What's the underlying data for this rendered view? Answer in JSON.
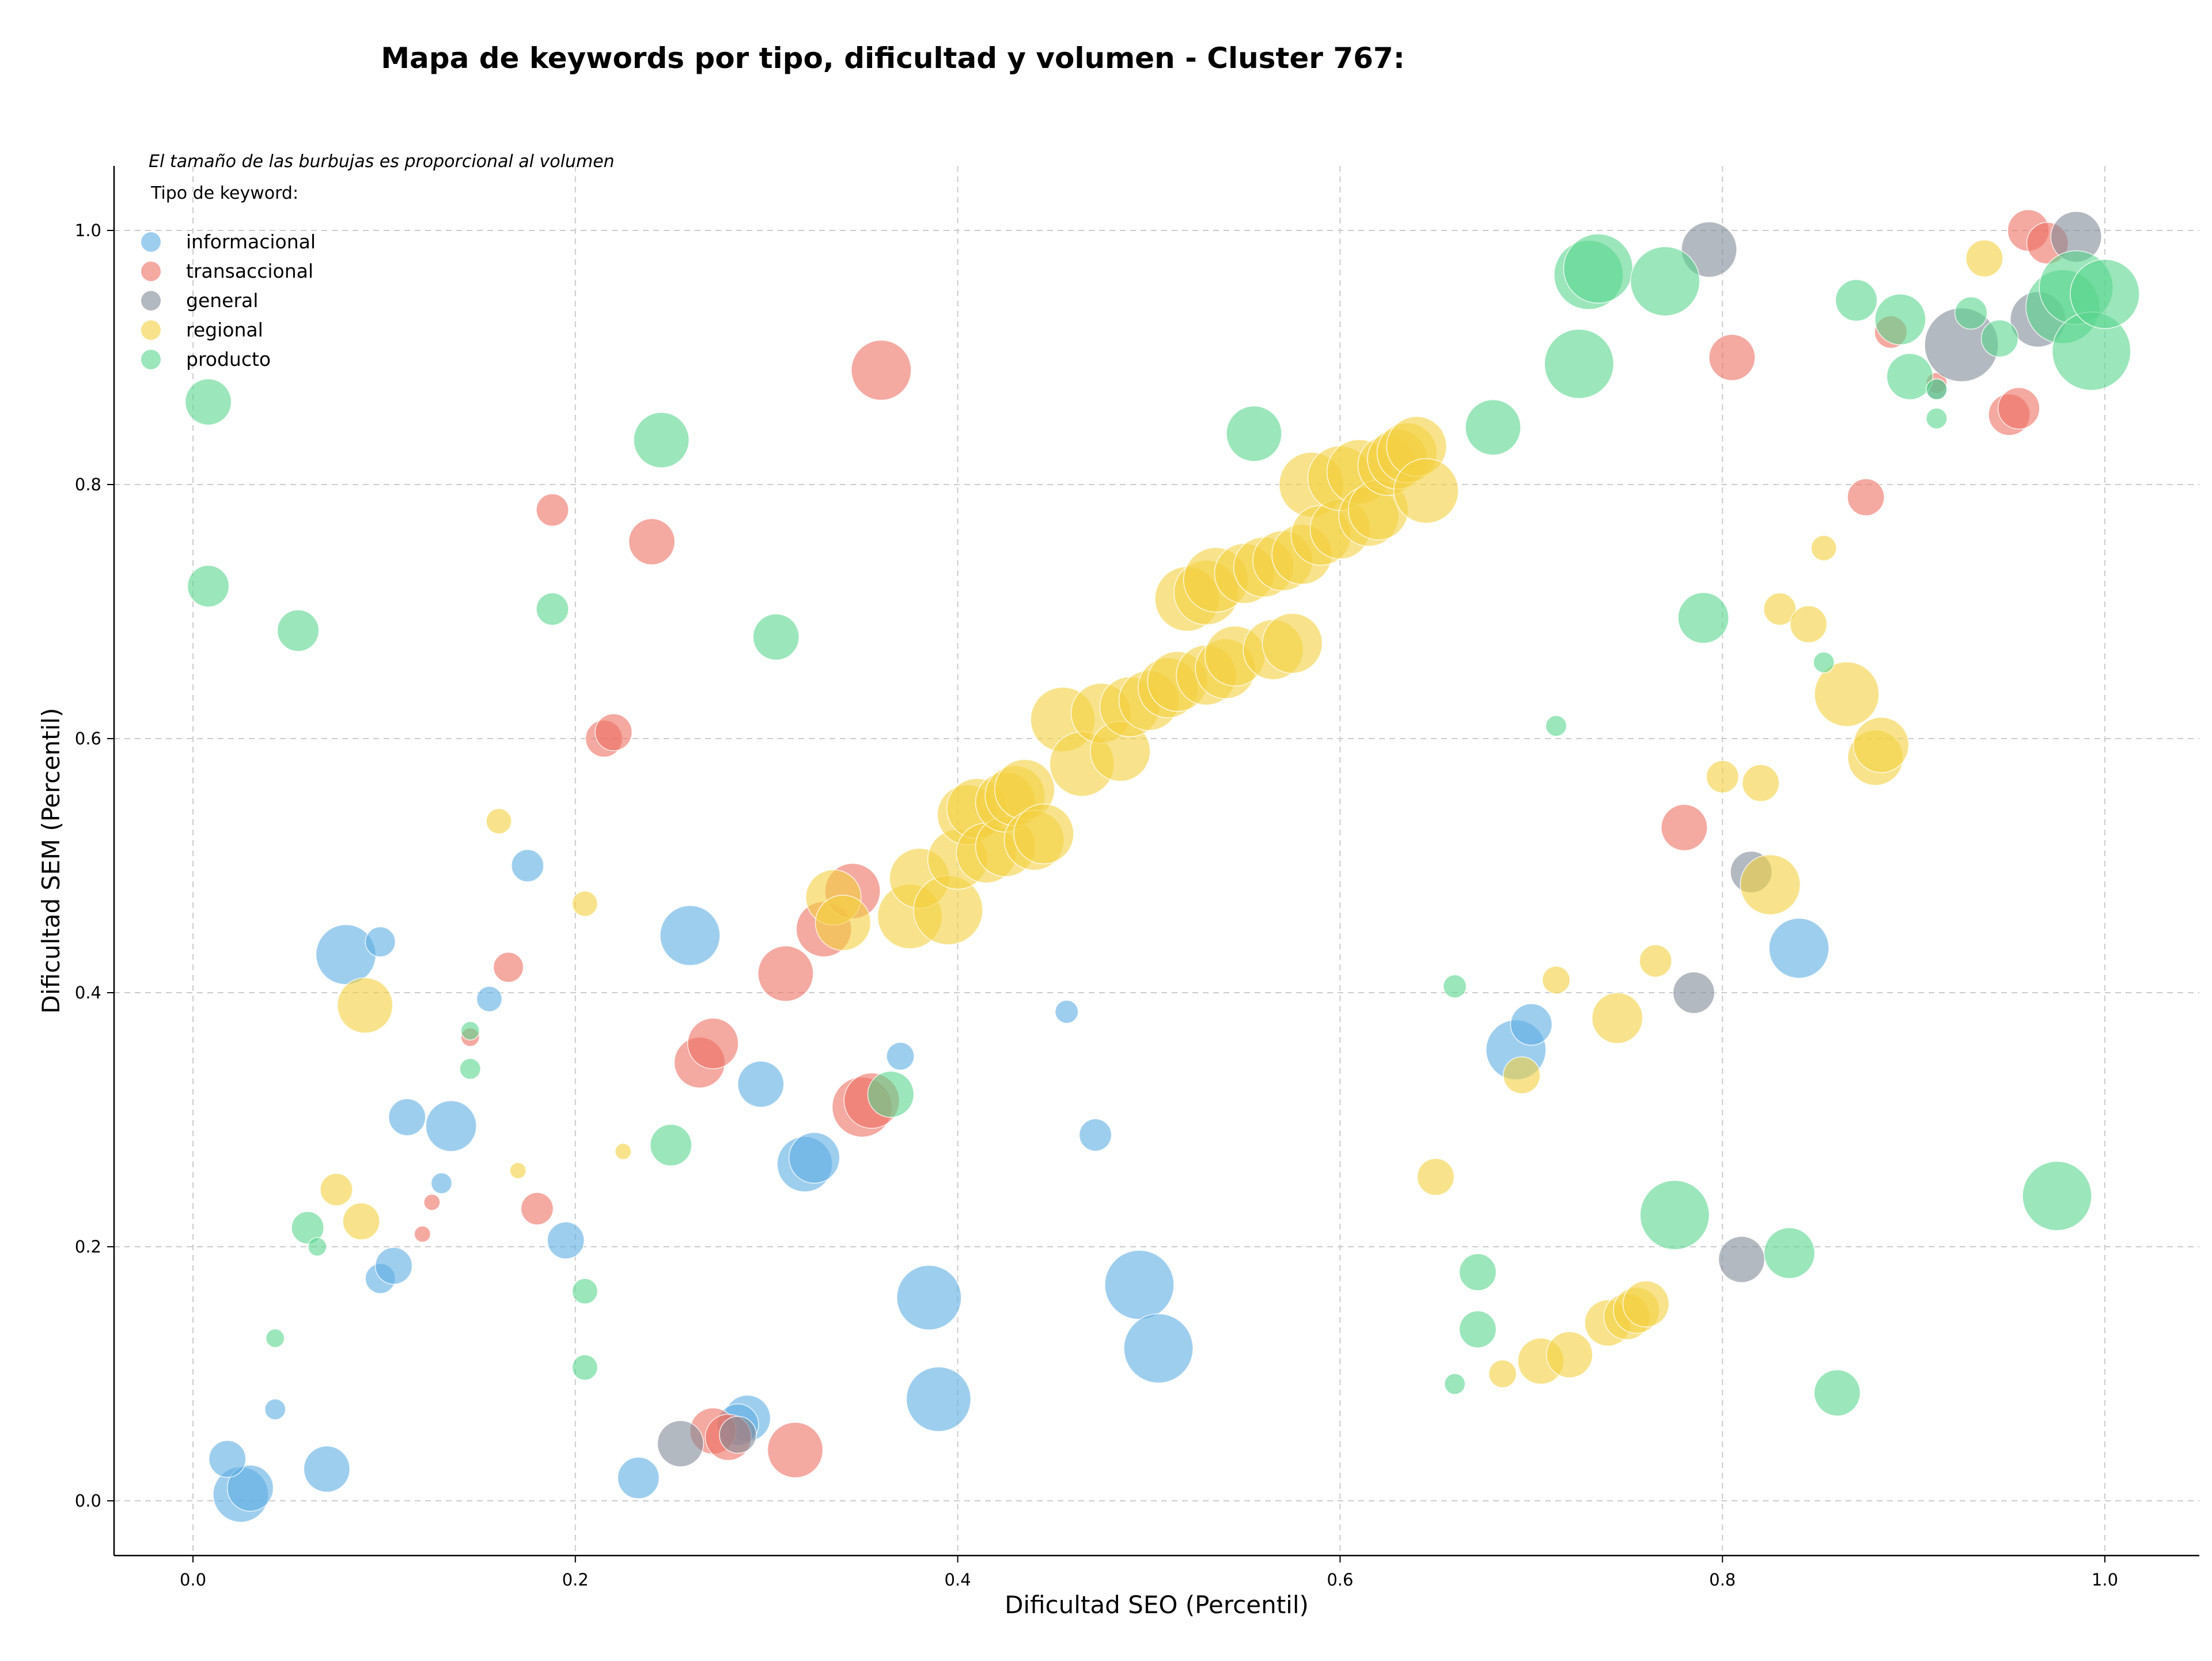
{
  "chart_data": {
    "type": "scatter",
    "title": "Mapa de keywords por tipo, dificultad y volumen - Cluster 767:",
    "xlabel": "Dificultad SEO (Percentil)",
    "ylabel": "Dificultad SEM (Percentil)",
    "xlim": [
      -0.04,
      1.05
    ],
    "ylim": [
      -0.045,
      1.05
    ],
    "xticks": [
      "0.0",
      "0.2",
      "0.4",
      "0.6",
      "0.8",
      "1.0"
    ],
    "yticks": [
      "0.0",
      "0.2",
      "0.4",
      "0.6",
      "0.8",
      "1.0"
    ],
    "grid": true,
    "legend_position": "top-left",
    "legend_note": "El tamaño de las burbujas es proporcional al volumen",
    "legend_title": "Tipo de keyword:",
    "series": [
      {
        "name": "informacional",
        "color": "#5DADE2",
        "points": [
          {
            "x": 0.025,
            "y": 0.005,
            "s": 2.4
          },
          {
            "x": 0.03,
            "y": 0.01,
            "s": 2.0
          },
          {
            "x": 0.018,
            "y": 0.033,
            "s": 1.6
          },
          {
            "x": 0.07,
            "y": 0.025,
            "s": 2.0
          },
          {
            "x": 0.043,
            "y": 0.072,
            "s": 0.9
          },
          {
            "x": 0.098,
            "y": 0.175,
            "s": 1.3
          },
          {
            "x": 0.105,
            "y": 0.185,
            "s": 1.6
          },
          {
            "x": 0.195,
            "y": 0.205,
            "s": 1.6
          },
          {
            "x": 0.13,
            "y": 0.25,
            "s": 0.9
          },
          {
            "x": 0.112,
            "y": 0.302,
            "s": 1.6
          },
          {
            "x": 0.135,
            "y": 0.295,
            "s": 2.2
          },
          {
            "x": 0.155,
            "y": 0.395,
            "s": 1.1
          },
          {
            "x": 0.08,
            "y": 0.43,
            "s": 2.6
          },
          {
            "x": 0.098,
            "y": 0.44,
            "s": 1.3
          },
          {
            "x": 0.175,
            "y": 0.5,
            "s": 1.4
          },
          {
            "x": 0.26,
            "y": 0.445,
            "s": 2.6
          },
          {
            "x": 0.297,
            "y": 0.328,
            "s": 2.0
          },
          {
            "x": 0.32,
            "y": 0.265,
            "s": 2.4
          },
          {
            "x": 0.325,
            "y": 0.27,
            "s": 2.2
          },
          {
            "x": 0.37,
            "y": 0.35,
            "s": 1.2
          },
          {
            "x": 0.233,
            "y": 0.018,
            "s": 1.8
          },
          {
            "x": 0.29,
            "y": 0.065,
            "s": 2.0
          },
          {
            "x": 0.285,
            "y": 0.06,
            "s": 1.8
          },
          {
            "x": 0.385,
            "y": 0.16,
            "s": 2.8
          },
          {
            "x": 0.39,
            "y": 0.08,
            "s": 2.8
          },
          {
            "x": 0.457,
            "y": 0.385,
            "s": 1.0
          },
          {
            "x": 0.472,
            "y": 0.288,
            "s": 1.4
          },
          {
            "x": 0.495,
            "y": 0.17,
            "s": 3.0
          },
          {
            "x": 0.505,
            "y": 0.12,
            "s": 3.0
          },
          {
            "x": 0.692,
            "y": 0.355,
            "s": 2.6
          },
          {
            "x": 0.7,
            "y": 0.375,
            "s": 1.8
          },
          {
            "x": 0.84,
            "y": 0.435,
            "s": 2.6
          }
        ]
      },
      {
        "name": "transaccional",
        "color": "#EC7063",
        "points": [
          {
            "x": 0.12,
            "y": 0.21,
            "s": 0.7
          },
          {
            "x": 0.125,
            "y": 0.235,
            "s": 0.7
          },
          {
            "x": 0.18,
            "y": 0.23,
            "s": 1.4
          },
          {
            "x": 0.145,
            "y": 0.365,
            "s": 0.8
          },
          {
            "x": 0.165,
            "y": 0.42,
            "s": 1.3
          },
          {
            "x": 0.188,
            "y": 0.78,
            "s": 1.4
          },
          {
            "x": 0.215,
            "y": 0.6,
            "s": 1.6
          },
          {
            "x": 0.22,
            "y": 0.605,
            "s": 1.6
          },
          {
            "x": 0.24,
            "y": 0.755,
            "s": 2.0
          },
          {
            "x": 0.265,
            "y": 0.345,
            "s": 2.2
          },
          {
            "x": 0.272,
            "y": 0.36,
            "s": 2.2
          },
          {
            "x": 0.31,
            "y": 0.415,
            "s": 2.4
          },
          {
            "x": 0.33,
            "y": 0.45,
            "s": 2.4
          },
          {
            "x": 0.345,
            "y": 0.48,
            "s": 2.4
          },
          {
            "x": 0.35,
            "y": 0.31,
            "s": 2.6
          },
          {
            "x": 0.355,
            "y": 0.315,
            "s": 2.4
          },
          {
            "x": 0.36,
            "y": 0.89,
            "s": 2.6
          },
          {
            "x": 0.272,
            "y": 0.055,
            "s": 2.0
          },
          {
            "x": 0.28,
            "y": 0.05,
            "s": 2.0
          },
          {
            "x": 0.315,
            "y": 0.04,
            "s": 2.4
          },
          {
            "x": 0.78,
            "y": 0.53,
            "s": 2.0
          },
          {
            "x": 0.805,
            "y": 0.9,
            "s": 2.0
          },
          {
            "x": 0.875,
            "y": 0.79,
            "s": 1.6
          },
          {
            "x": 0.888,
            "y": 0.92,
            "s": 1.4
          },
          {
            "x": 0.95,
            "y": 0.855,
            "s": 1.8
          },
          {
            "x": 0.955,
            "y": 0.86,
            "s": 1.8
          },
          {
            "x": 0.96,
            "y": 1.0,
            "s": 1.8
          },
          {
            "x": 0.97,
            "y": 0.99,
            "s": 1.8
          },
          {
            "x": 0.912,
            "y": 0.88,
            "s": 0.9
          }
        ]
      },
      {
        "name": "general",
        "color": "#808B96",
        "points": [
          {
            "x": 0.255,
            "y": 0.045,
            "s": 2.0
          },
          {
            "x": 0.285,
            "y": 0.052,
            "s": 1.6
          },
          {
            "x": 0.785,
            "y": 0.4,
            "s": 1.8
          },
          {
            "x": 0.793,
            "y": 0.985,
            "s": 2.4
          },
          {
            "x": 0.81,
            "y": 0.19,
            "s": 2.0
          },
          {
            "x": 0.815,
            "y": 0.495,
            "s": 1.8
          },
          {
            "x": 0.912,
            "y": 0.875,
            "s": 0.9
          },
          {
            "x": 0.925,
            "y": 0.91,
            "s": 3.2
          },
          {
            "x": 0.965,
            "y": 0.93,
            "s": 2.4
          },
          {
            "x": 0.985,
            "y": 0.995,
            "s": 2.2
          }
        ]
      },
      {
        "name": "regional",
        "color": "#F4D03F",
        "points": [
          {
            "x": 0.075,
            "y": 0.245,
            "s": 1.4
          },
          {
            "x": 0.088,
            "y": 0.22,
            "s": 1.6
          },
          {
            "x": 0.09,
            "y": 0.39,
            "s": 2.4
          },
          {
            "x": 0.16,
            "y": 0.535,
            "s": 1.1
          },
          {
            "x": 0.17,
            "y": 0.26,
            "s": 0.7
          },
          {
            "x": 0.205,
            "y": 0.47,
            "s": 1.1
          },
          {
            "x": 0.225,
            "y": 0.275,
            "s": 0.7
          },
          {
            "x": 0.335,
            "y": 0.475,
            "s": 2.4
          },
          {
            "x": 0.34,
            "y": 0.455,
            "s": 2.4
          },
          {
            "x": 0.375,
            "y": 0.46,
            "s": 2.8
          },
          {
            "x": 0.38,
            "y": 0.49,
            "s": 2.6
          },
          {
            "x": 0.395,
            "y": 0.465,
            "s": 3.0
          },
          {
            "x": 0.4,
            "y": 0.505,
            "s": 2.6
          },
          {
            "x": 0.405,
            "y": 0.54,
            "s": 2.6
          },
          {
            "x": 0.41,
            "y": 0.545,
            "s": 2.6
          },
          {
            "x": 0.415,
            "y": 0.51,
            "s": 2.6
          },
          {
            "x": 0.425,
            "y": 0.515,
            "s": 2.6
          },
          {
            "x": 0.425,
            "y": 0.55,
            "s": 2.6
          },
          {
            "x": 0.43,
            "y": 0.555,
            "s": 2.6
          },
          {
            "x": 0.435,
            "y": 0.56,
            "s": 2.6
          },
          {
            "x": 0.44,
            "y": 0.52,
            "s": 2.6
          },
          {
            "x": 0.445,
            "y": 0.525,
            "s": 2.6
          },
          {
            "x": 0.455,
            "y": 0.615,
            "s": 2.8
          },
          {
            "x": 0.465,
            "y": 0.58,
            "s": 2.8
          },
          {
            "x": 0.475,
            "y": 0.62,
            "s": 2.6
          },
          {
            "x": 0.485,
            "y": 0.59,
            "s": 2.6
          },
          {
            "x": 0.49,
            "y": 0.625,
            "s": 2.6
          },
          {
            "x": 0.5,
            "y": 0.63,
            "s": 2.6
          },
          {
            "x": 0.51,
            "y": 0.64,
            "s": 2.6
          },
          {
            "x": 0.515,
            "y": 0.645,
            "s": 2.6
          },
          {
            "x": 0.52,
            "y": 0.71,
            "s": 2.8
          },
          {
            "x": 0.53,
            "y": 0.715,
            "s": 2.8
          },
          {
            "x": 0.53,
            "y": 0.65,
            "s": 2.6
          },
          {
            "x": 0.535,
            "y": 0.725,
            "s": 2.8
          },
          {
            "x": 0.54,
            "y": 0.655,
            "s": 2.6
          },
          {
            "x": 0.545,
            "y": 0.665,
            "s": 2.6
          },
          {
            "x": 0.55,
            "y": 0.73,
            "s": 2.6
          },
          {
            "x": 0.56,
            "y": 0.735,
            "s": 2.6
          },
          {
            "x": 0.565,
            "y": 0.67,
            "s": 2.6
          },
          {
            "x": 0.57,
            "y": 0.74,
            "s": 2.6
          },
          {
            "x": 0.575,
            "y": 0.675,
            "s": 2.6
          },
          {
            "x": 0.58,
            "y": 0.745,
            "s": 2.6
          },
          {
            "x": 0.585,
            "y": 0.8,
            "s": 2.8
          },
          {
            "x": 0.59,
            "y": 0.76,
            "s": 2.6
          },
          {
            "x": 0.6,
            "y": 0.765,
            "s": 2.6
          },
          {
            "x": 0.6,
            "y": 0.805,
            "s": 2.8
          },
          {
            "x": 0.61,
            "y": 0.81,
            "s": 2.8
          },
          {
            "x": 0.615,
            "y": 0.775,
            "s": 2.6
          },
          {
            "x": 0.62,
            "y": 0.78,
            "s": 2.6
          },
          {
            "x": 0.625,
            "y": 0.815,
            "s": 2.6
          },
          {
            "x": 0.63,
            "y": 0.82,
            "s": 2.6
          },
          {
            "x": 0.635,
            "y": 0.825,
            "s": 2.6
          },
          {
            "x": 0.64,
            "y": 0.83,
            "s": 2.6
          },
          {
            "x": 0.645,
            "y": 0.795,
            "s": 2.8
          },
          {
            "x": 0.65,
            "y": 0.255,
            "s": 1.6
          },
          {
            "x": 0.685,
            "y": 0.1,
            "s": 1.2
          },
          {
            "x": 0.695,
            "y": 0.335,
            "s": 1.6
          },
          {
            "x": 0.705,
            "y": 0.11,
            "s": 2.0
          },
          {
            "x": 0.713,
            "y": 0.41,
            "s": 1.2
          },
          {
            "x": 0.72,
            "y": 0.115,
            "s": 2.0
          },
          {
            "x": 0.74,
            "y": 0.14,
            "s": 2.0
          },
          {
            "x": 0.745,
            "y": 0.38,
            "s": 2.2
          },
          {
            "x": 0.75,
            "y": 0.145,
            "s": 2.0
          },
          {
            "x": 0.755,
            "y": 0.15,
            "s": 2.0
          },
          {
            "x": 0.76,
            "y": 0.155,
            "s": 2.0
          },
          {
            "x": 0.765,
            "y": 0.425,
            "s": 1.4
          },
          {
            "x": 0.8,
            "y": 0.57,
            "s": 1.4
          },
          {
            "x": 0.82,
            "y": 0.565,
            "s": 1.6
          },
          {
            "x": 0.825,
            "y": 0.485,
            "s": 2.6
          },
          {
            "x": 0.83,
            "y": 0.702,
            "s": 1.4
          },
          {
            "x": 0.845,
            "y": 0.69,
            "s": 1.6
          },
          {
            "x": 0.853,
            "y": 0.75,
            "s": 1.1
          },
          {
            "x": 0.865,
            "y": 0.635,
            "s": 2.8
          },
          {
            "x": 0.88,
            "y": 0.585,
            "s": 2.4
          },
          {
            "x": 0.883,
            "y": 0.595,
            "s": 2.4
          },
          {
            "x": 0.937,
            "y": 0.978,
            "s": 1.6
          }
        ]
      },
      {
        "name": "producto",
        "color": "#58D68D",
        "points": [
          {
            "x": 0.008,
            "y": 0.865,
            "s": 2.0
          },
          {
            "x": 0.008,
            "y": 0.72,
            "s": 1.8
          },
          {
            "x": 0.055,
            "y": 0.685,
            "s": 1.8
          },
          {
            "x": 0.043,
            "y": 0.128,
            "s": 0.8
          },
          {
            "x": 0.06,
            "y": 0.215,
            "s": 1.4
          },
          {
            "x": 0.065,
            "y": 0.2,
            "s": 0.8
          },
          {
            "x": 0.145,
            "y": 0.37,
            "s": 0.8
          },
          {
            "x": 0.145,
            "y": 0.34,
            "s": 0.9
          },
          {
            "x": 0.188,
            "y": 0.702,
            "s": 1.4
          },
          {
            "x": 0.205,
            "y": 0.165,
            "s": 1.1
          },
          {
            "x": 0.205,
            "y": 0.105,
            "s": 1.1
          },
          {
            "x": 0.245,
            "y": 0.835,
            "s": 2.4
          },
          {
            "x": 0.25,
            "y": 0.28,
            "s": 1.8
          },
          {
            "x": 0.305,
            "y": 0.68,
            "s": 2.0
          },
          {
            "x": 0.365,
            "y": 0.32,
            "s": 2.0
          },
          {
            "x": 0.555,
            "y": 0.84,
            "s": 2.4
          },
          {
            "x": 0.66,
            "y": 0.405,
            "s": 1.0
          },
          {
            "x": 0.66,
            "y": 0.092,
            "s": 0.9
          },
          {
            "x": 0.672,
            "y": 0.18,
            "s": 1.6
          },
          {
            "x": 0.672,
            "y": 0.135,
            "s": 1.6
          },
          {
            "x": 0.68,
            "y": 0.845,
            "s": 2.4
          },
          {
            "x": 0.713,
            "y": 0.61,
            "s": 0.9
          },
          {
            "x": 0.725,
            "y": 0.895,
            "s": 3.0
          },
          {
            "x": 0.73,
            "y": 0.965,
            "s": 3.0
          },
          {
            "x": 0.735,
            "y": 0.97,
            "s": 3.0
          },
          {
            "x": 0.77,
            "y": 0.96,
            "s": 3.0
          },
          {
            "x": 0.775,
            "y": 0.225,
            "s": 3.0
          },
          {
            "x": 0.79,
            "y": 0.695,
            "s": 2.2
          },
          {
            "x": 0.835,
            "y": 0.195,
            "s": 2.2
          },
          {
            "x": 0.853,
            "y": 0.66,
            "s": 0.9
          },
          {
            "x": 0.86,
            "y": 0.085,
            "s": 2.0
          },
          {
            "x": 0.87,
            "y": 0.945,
            "s": 1.8
          },
          {
            "x": 0.893,
            "y": 0.93,
            "s": 2.2
          },
          {
            "x": 0.898,
            "y": 0.885,
            "s": 2.0
          },
          {
            "x": 0.912,
            "y": 0.852,
            "s": 0.9
          },
          {
            "x": 0.912,
            "y": 0.875,
            "s": 0.9
          },
          {
            "x": 0.93,
            "y": 0.935,
            "s": 1.4
          },
          {
            "x": 0.945,
            "y": 0.915,
            "s": 1.6
          },
          {
            "x": 0.975,
            "y": 0.24,
            "s": 3.0
          },
          {
            "x": 0.978,
            "y": 0.94,
            "s": 3.2
          },
          {
            "x": 0.985,
            "y": 0.955,
            "s": 3.2
          },
          {
            "x": 0.993,
            "y": 0.905,
            "s": 3.4
          },
          {
            "x": 1.0,
            "y": 0.95,
            "s": 3.0
          }
        ]
      }
    ]
  }
}
